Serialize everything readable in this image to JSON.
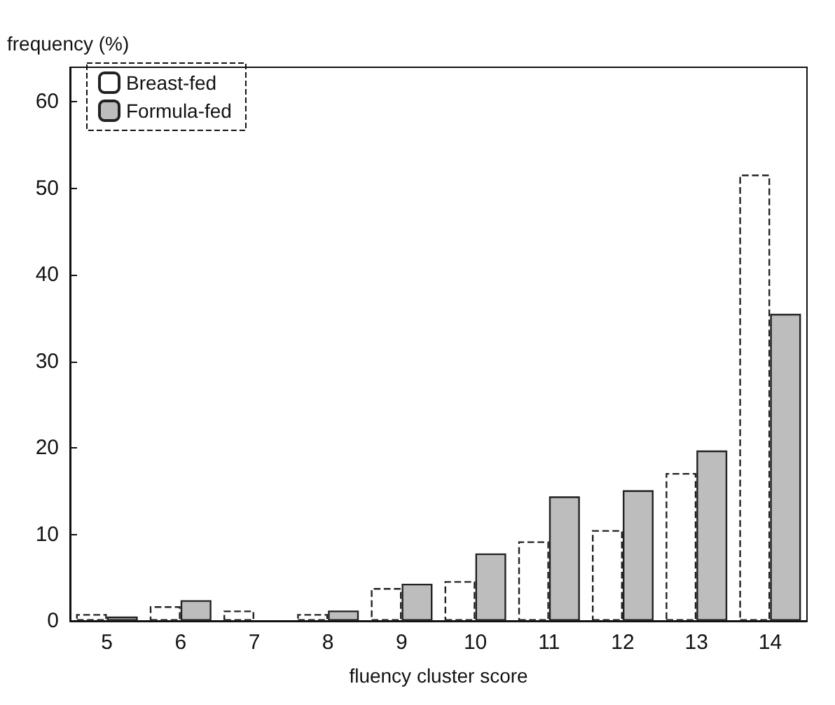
{
  "chart_data": {
    "type": "bar",
    "xlabel": "fluency cluster score",
    "ylabel": "frequency (%)",
    "categories": [
      "5",
      "6",
      "7",
      "8",
      "9",
      "10",
      "11",
      "12",
      "13",
      "14"
    ],
    "series": [
      {
        "name": "Breast-fed",
        "color": "#ffffff",
        "values": [
          0.8,
          1.7,
          1.2,
          0.8,
          3.8,
          4.6,
          9.2,
          10.5,
          17.1,
          51.6
        ]
      },
      {
        "name": "Formula-fed",
        "color": "#bdbdbd",
        "values": [
          0.5,
          2.4,
          null,
          1.2,
          4.3,
          7.8,
          14.4,
          15.1,
          19.7,
          35.5
        ]
      }
    ],
    "ylim": [
      0,
      64
    ],
    "yticks": [
      0,
      10,
      20,
      30,
      40,
      50,
      60
    ],
    "grid": false,
    "legend": "top left"
  }
}
